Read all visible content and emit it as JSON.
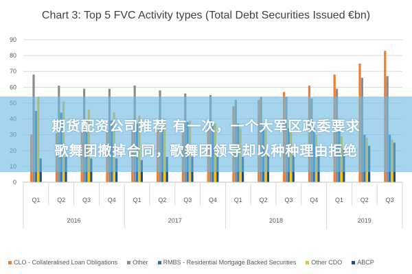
{
  "overlay": {
    "line1": "期货配资公司推荐 有一次，一个大军区政委要求",
    "line2": "歌舞团撤掉合同，歌舞团领导却以种种理由拒绝"
  },
  "chart_data": {
    "type": "bar",
    "title": "Chart 3: Top 5 FVC Activity types (Total Debt Securities Issued €bn)",
    "xlabel": "",
    "ylabel": "",
    "ylim": [
      0,
      90
    ],
    "yticks": [
      "0",
      "10",
      "20",
      "30",
      "40",
      "50",
      "60",
      "70",
      "80",
      "90"
    ],
    "categories": [
      "Q1",
      "Q2",
      "Q3",
      "Q4",
      "Q1",
      "Q2",
      "Q3",
      "Q4",
      "Q1",
      "Q2",
      "Q3",
      "Q4",
      "Q1",
      "Q2",
      "Q3"
    ],
    "groups": [
      {
        "label": "2016",
        "start": 0,
        "end": 3
      },
      {
        "label": "2017",
        "start": 4,
        "end": 7
      },
      {
        "label": "2018",
        "start": 8,
        "end": 11
      },
      {
        "label": "2019",
        "start": 12,
        "end": 14
      }
    ],
    "grid": true,
    "legend_position": "bottom",
    "series": [
      {
        "name": "CLO - Collateralised Loan Obligations",
        "color": "#ED7D31",
        "values": [
          30,
          31,
          32,
          33,
          33,
          33,
          34,
          35,
          48,
          52,
          57,
          61,
          68,
          75,
          83
        ]
      },
      {
        "name": "Other",
        "color": "#8C8C8C",
        "values": [
          68,
          61,
          59,
          59,
          61,
          58,
          56,
          55,
          52,
          54,
          54,
          53,
          59,
          66,
          67
        ]
      },
      {
        "name": "RMBS - Residential Mortgage Backed Securities",
        "color": "#2E75B6",
        "values": [
          45,
          44,
          39,
          39,
          37,
          37,
          38,
          38,
          37,
          35,
          34,
          34,
          34,
          30,
          30
        ]
      },
      {
        "name": "Other CDO",
        "color": "#FFC000",
        "values": [
          54,
          51,
          46,
          44,
          42,
          40,
          39,
          37,
          34,
          33,
          32,
          30,
          29,
          28,
          27
        ]
      },
      {
        "name": "ABCP",
        "color": "#1F4E79",
        "values": [
          15,
          16,
          15,
          15,
          14,
          16,
          16,
          16,
          16,
          17,
          17,
          17,
          21,
          23,
          25
        ]
      }
    ]
  }
}
